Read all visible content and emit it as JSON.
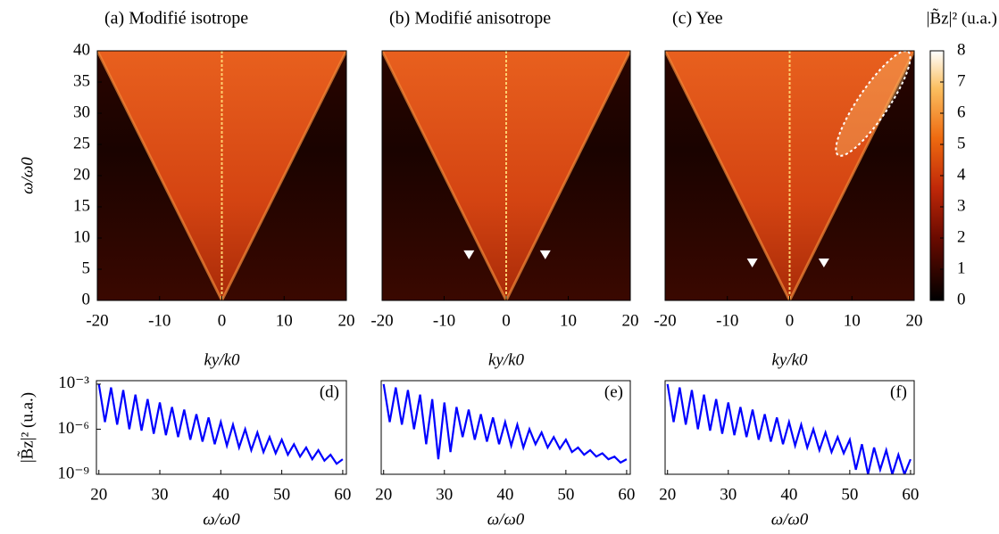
{
  "chart_data": [
    {
      "type": "heatmap",
      "title": "(a) Modifié isotrope",
      "xlabel": "ky/k0",
      "ylabel": "ω/ω0",
      "xlim": [
        -20,
        20
      ],
      "xticks": [
        -20,
        -10,
        0,
        10,
        20
      ],
      "ylim": [
        0,
        40
      ],
      "yticks": [
        0,
        5,
        10,
        15,
        20,
        25,
        30,
        35,
        40
      ]
    },
    {
      "type": "heatmap",
      "title": "(b) Modifié anisotrope",
      "xlabel": "ky/k0",
      "xlim": [
        -20,
        20
      ],
      "xticks": [
        -20,
        -10,
        0,
        10,
        20
      ],
      "ylim": [
        0,
        40
      ],
      "markers": [
        {
          "x": -6,
          "y": 7.3
        },
        {
          "x": 6.3,
          "y": 7.3
        }
      ]
    },
    {
      "type": "heatmap",
      "title": "(c) Yee",
      "xlabel": "ky/k0",
      "xlim": [
        -20,
        20
      ],
      "xticks": [
        -20,
        -10,
        0,
        10,
        20
      ],
      "ylim": [
        0,
        40
      ],
      "markers": [
        {
          "x": -6,
          "y": 6
        },
        {
          "x": 5.5,
          "y": 6
        }
      ],
      "colorbar": {
        "label": "|B̃z|² (u.a.)",
        "lim": [
          0,
          8
        ],
        "ticks": [
          0,
          1,
          2,
          3,
          4,
          5,
          6,
          7,
          8
        ]
      }
    },
    {
      "type": "line",
      "annotation": "(d)",
      "xlabel": "ω/ω0",
      "ylabel": "|B̃z|² (u.a.)",
      "color": "#0000ff",
      "yscale": "log",
      "xlim": [
        19.6,
        60.6
      ],
      "xticks": [
        20,
        30,
        40,
        50,
        60
      ],
      "ylim": [
        1e-09,
        0.0017
      ],
      "yticks": [
        {
          "value": 1e-09,
          "label": "10⁻⁹"
        },
        {
          "value": 1e-06,
          "label": "10⁻⁶"
        },
        {
          "value": 0.001,
          "label": "10⁻³"
        }
      ],
      "x": [
        20,
        21,
        22,
        23,
        24,
        25,
        26,
        27,
        28,
        29,
        30,
        31,
        32,
        33,
        34,
        35,
        36,
        37,
        38,
        39,
        40,
        41,
        42,
        43,
        44,
        45,
        46,
        47,
        48,
        49,
        50,
        51,
        52,
        53,
        54,
        55,
        56,
        57,
        58,
        59,
        60
      ],
      "values": [
        0.001,
        3e-06,
        0.0006,
        2e-06,
        0.0004,
        1e-06,
        0.0002,
        8e-07,
        0.0001,
        5e-07,
        6e-05,
        4e-07,
        3e-05,
        3e-07,
        2e-05,
        2e-07,
        1e-05,
        1.5e-07,
        6e-06,
        1e-07,
        3e-06,
        8e-08,
        2e-06,
        6e-08,
        1e-06,
        4e-08,
        6e-07,
        3e-08,
        3e-07,
        2.5e-08,
        2e-07,
        2e-08,
        1e-07,
        1.5e-08,
        6e-08,
        1e-08,
        4e-08,
        8e-09,
        2e-08,
        5e-09,
        1e-08
      ]
    },
    {
      "type": "line",
      "annotation": "(e)",
      "xlabel": "ω/ω0",
      "color": "#0000ff",
      "yscale": "log",
      "xlim": [
        19.6,
        60.6
      ],
      "xticks": [
        20,
        30,
        40,
        50,
        60
      ],
      "ylim": [
        1e-09,
        0.0017
      ],
      "x": [
        20,
        21,
        22,
        23,
        24,
        25,
        26,
        27,
        28,
        29,
        30,
        31,
        32,
        33,
        34,
        35,
        36,
        37,
        38,
        39,
        40,
        41,
        42,
        43,
        44,
        45,
        46,
        47,
        48,
        49,
        50,
        51,
        52,
        53,
        54,
        55,
        56,
        57,
        58,
        59,
        60
      ],
      "values": [
        0.001,
        3e-06,
        0.0006,
        2e-06,
        0.0004,
        1e-06,
        0.0002,
        1e-07,
        0.0001,
        1e-08,
        6e-05,
        3e-08,
        3e-05,
        3e-07,
        2e-05,
        2e-07,
        1e-05,
        1.5e-07,
        6e-06,
        1e-07,
        3e-06,
        8e-08,
        2e-06,
        6e-08,
        1e-06,
        1e-07,
        6e-07,
        6e-08,
        3e-07,
        5e-08,
        2e-07,
        3e-08,
        6e-08,
        2e-08,
        4e-08,
        1.5e-08,
        2.5e-08,
        1e-08,
        1.5e-08,
        6e-09,
        1e-08
      ]
    },
    {
      "type": "line",
      "annotation": "(f)",
      "xlabel": "ω/ω0",
      "color": "#0000ff",
      "yscale": "log",
      "xlim": [
        19.6,
        60.6
      ],
      "xticks": [
        20,
        30,
        40,
        50,
        60
      ],
      "ylim": [
        1e-09,
        0.0017
      ],
      "x": [
        20,
        21,
        22,
        23,
        24,
        25,
        26,
        27,
        28,
        29,
        30,
        31,
        32,
        33,
        34,
        35,
        36,
        37,
        38,
        39,
        40,
        41,
        42,
        43,
        44,
        45,
        46,
        47,
        48,
        49,
        50,
        51,
        52,
        53,
        54,
        55,
        56,
        57,
        58,
        59,
        60
      ],
      "values": [
        0.001,
        3e-06,
        0.0006,
        2e-06,
        0.0004,
        1e-06,
        0.0002,
        8e-07,
        0.0001,
        5e-07,
        6e-05,
        4e-07,
        3e-05,
        3e-07,
        2e-05,
        2e-07,
        1e-05,
        1.5e-07,
        6e-06,
        1e-07,
        3e-06,
        8e-08,
        2e-06,
        6e-08,
        1e-06,
        4e-08,
        6e-07,
        3e-08,
        3e-07,
        2.5e-08,
        2e-07,
        2e-09,
        1e-07,
        1e-09,
        6e-08,
        2e-09,
        4e-08,
        1e-09,
        2e-08,
        1e-09,
        1e-08
      ]
    }
  ]
}
